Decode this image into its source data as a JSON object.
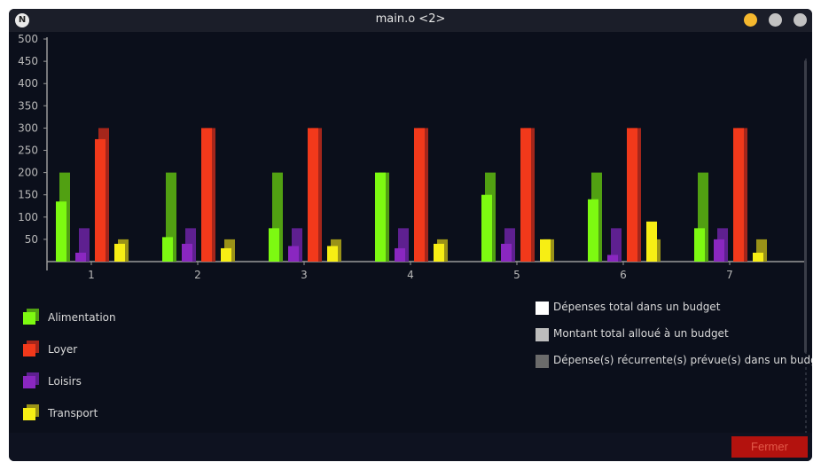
{
  "window": {
    "title": "main.o <2>",
    "close_button_label": "Fermer"
  },
  "chart_data": {
    "type": "bar",
    "xlabel": "",
    "ylabel": "",
    "ylim": [
      0,
      500
    ],
    "yticks": [
      50,
      100,
      150,
      200,
      250,
      300,
      350,
      400,
      450,
      500
    ],
    "categories": [
      "1",
      "2",
      "3",
      "4",
      "5",
      "6",
      "7"
    ],
    "series": [
      {
        "name": "Alimentation",
        "color": "#7dfa11",
        "budget_color": "#51a012",
        "values": [
          135,
          55,
          75,
          200,
          150,
          140,
          75
        ],
        "budget": [
          200,
          200,
          200,
          200,
          200,
          200,
          200
        ]
      },
      {
        "name": "Loyer",
        "color": "#f2391b",
        "budget_color": "#a5261b",
        "values": [
          275,
          300,
          300,
          300,
          300,
          300,
          300
        ],
        "budget": [
          300,
          300,
          300,
          300,
          300,
          300,
          300
        ]
      },
      {
        "name": "Loisirs",
        "color": "#8a27c0",
        "budget_color": "#5e2090",
        "values": [
          20,
          40,
          35,
          30,
          40,
          15,
          50
        ],
        "budget": [
          75,
          75,
          75,
          75,
          75,
          75,
          75
        ]
      },
      {
        "name": "Transport",
        "color": "#f7ee14",
        "budget_color": "#9a9218",
        "values": [
          40,
          30,
          35,
          40,
          50,
          90,
          20
        ],
        "budget": [
          50,
          50,
          50,
          50,
          50,
          50,
          50
        ]
      }
    ],
    "legend_placement": "bottom-left",
    "budget_legend": [
      {
        "label": "Dépenses total dans un budget",
        "color": "#ffffff"
      },
      {
        "label": "Montant total alloué à un budget",
        "color": "#bdbdbd"
      },
      {
        "label": "Dépense(s) récurrente(s) prévue(s) dans un budget",
        "color": "#6b6b6b"
      }
    ]
  }
}
